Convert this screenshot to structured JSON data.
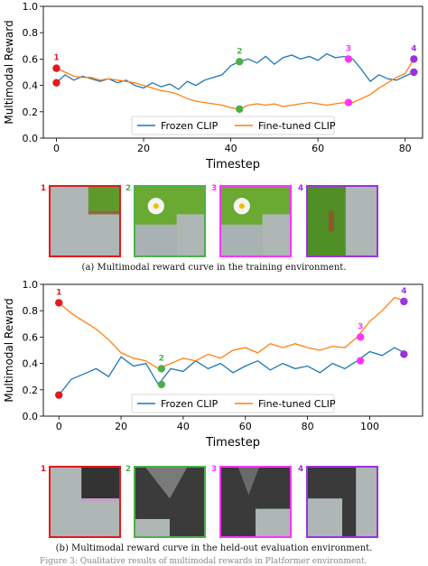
{
  "chart_data": [
    {
      "type": "line",
      "ylabel": "Multimodal Reward",
      "xlabel": "Timestep",
      "xlim": [
        -3,
        84
      ],
      "ylim": [
        0.0,
        1.0
      ],
      "xticks": [
        0,
        20,
        40,
        60,
        80
      ],
      "yticks": [
        0.0,
        0.2,
        0.4,
        0.6,
        0.8,
        1.0
      ],
      "xtick_labels": [
        "0",
        "20",
        "40",
        "60",
        "80"
      ],
      "ytick_labels": [
        "0.0",
        "0.2",
        "0.4",
        "0.6",
        "0.8",
        "1.0"
      ],
      "legend_position": "bottom-center",
      "series": [
        {
          "name": "Frozen CLIP",
          "color": "#1f77b4",
          "x": [
            0,
            2,
            4,
            6,
            8,
            10,
            12,
            14,
            16,
            18,
            20,
            22,
            24,
            26,
            28,
            30,
            32,
            34,
            36,
            38,
            40,
            42,
            44,
            46,
            48,
            50,
            52,
            54,
            56,
            58,
            60,
            62,
            64,
            66,
            68,
            70,
            72,
            74,
            76,
            78,
            80,
            82
          ],
          "y": [
            0.42,
            0.48,
            0.44,
            0.47,
            0.45,
            0.43,
            0.45,
            0.42,
            0.44,
            0.4,
            0.38,
            0.42,
            0.39,
            0.41,
            0.37,
            0.43,
            0.4,
            0.44,
            0.46,
            0.48,
            0.55,
            0.58,
            0.6,
            0.57,
            0.62,
            0.56,
            0.61,
            0.63,
            0.6,
            0.62,
            0.59,
            0.64,
            0.61,
            0.62,
            0.6,
            0.52,
            0.43,
            0.48,
            0.45,
            0.44,
            0.47,
            0.5
          ]
        },
        {
          "name": "Fine-tuned CLIP",
          "color": "#ff7f0e",
          "x": [
            0,
            2,
            4,
            6,
            8,
            10,
            12,
            14,
            16,
            18,
            20,
            22,
            24,
            26,
            28,
            30,
            32,
            34,
            36,
            38,
            40,
            42,
            44,
            46,
            48,
            50,
            52,
            54,
            56,
            58,
            60,
            62,
            64,
            66,
            68,
            70,
            72,
            74,
            76,
            78,
            80,
            82
          ],
          "y": [
            0.53,
            0.5,
            0.47,
            0.46,
            0.46,
            0.44,
            0.45,
            0.44,
            0.43,
            0.42,
            0.4,
            0.38,
            0.36,
            0.35,
            0.33,
            0.3,
            0.28,
            0.27,
            0.26,
            0.25,
            0.23,
            0.22,
            0.25,
            0.26,
            0.25,
            0.26,
            0.24,
            0.25,
            0.26,
            0.27,
            0.26,
            0.25,
            0.26,
            0.27,
            0.27,
            0.3,
            0.33,
            0.38,
            0.42,
            0.46,
            0.49,
            0.6
          ]
        }
      ],
      "markers": [
        {
          "label": "1",
          "color": "#e41a1c",
          "x": 0,
          "y_upper": 0.53,
          "y_lower": 0.42
        },
        {
          "label": "2",
          "color": "#4daf4a",
          "x": 42,
          "y_upper": 0.58,
          "y_lower": 0.22
        },
        {
          "label": "3",
          "color": "#ff33ff",
          "x": 67,
          "y_upper": 0.6,
          "y_lower": 0.27
        },
        {
          "label": "4",
          "color": "#9933dd",
          "x": 82,
          "y_upper": 0.6,
          "y_lower": 0.5
        }
      ]
    },
    {
      "type": "line",
      "ylabel": "Multimodal Reward",
      "xlabel": "Timestep",
      "xlim": [
        -5,
        117
      ],
      "ylim": [
        0.0,
        1.0
      ],
      "xticks": [
        0,
        20,
        40,
        60,
        80,
        100
      ],
      "yticks": [
        0.0,
        0.2,
        0.4,
        0.6,
        0.8,
        1.0
      ],
      "xtick_labels": [
        "0",
        "20",
        "40",
        "60",
        "80",
        "100"
      ],
      "ytick_labels": [
        "0.0",
        "0.2",
        "0.4",
        "0.6",
        "0.8",
        "1.0"
      ],
      "legend_position": "bottom-center",
      "series": [
        {
          "name": "Frozen CLIP",
          "color": "#1f77b4",
          "x": [
            0,
            4,
            8,
            12,
            16,
            20,
            24,
            28,
            32,
            36,
            40,
            44,
            48,
            52,
            56,
            60,
            64,
            68,
            72,
            76,
            80,
            84,
            88,
            92,
            96,
            100,
            104,
            108,
            112
          ],
          "y": [
            0.16,
            0.28,
            0.32,
            0.36,
            0.3,
            0.45,
            0.38,
            0.4,
            0.24,
            0.36,
            0.34,
            0.42,
            0.36,
            0.4,
            0.33,
            0.38,
            0.42,
            0.35,
            0.4,
            0.36,
            0.38,
            0.33,
            0.4,
            0.36,
            0.42,
            0.49,
            0.46,
            0.52,
            0.47
          ]
        },
        {
          "name": "Fine-tuned CLIP",
          "color": "#ff7f0e",
          "x": [
            0,
            4,
            8,
            12,
            16,
            20,
            24,
            28,
            32,
            36,
            40,
            44,
            48,
            52,
            56,
            60,
            64,
            68,
            72,
            76,
            80,
            84,
            88,
            92,
            96,
            100,
            104,
            108,
            112
          ],
          "y": [
            0.86,
            0.78,
            0.72,
            0.66,
            0.58,
            0.48,
            0.44,
            0.42,
            0.36,
            0.4,
            0.44,
            0.42,
            0.47,
            0.44,
            0.5,
            0.52,
            0.48,
            0.55,
            0.52,
            0.55,
            0.52,
            0.5,
            0.53,
            0.52,
            0.6,
            0.72,
            0.8,
            0.9,
            0.87
          ]
        }
      ],
      "markers": [
        {
          "label": "1",
          "color": "#e41a1c",
          "x": 0,
          "y_upper": 0.86,
          "y_lower": 0.16
        },
        {
          "label": "2",
          "color": "#4daf4a",
          "x": 33,
          "y_upper": 0.36,
          "y_lower": 0.24
        },
        {
          "label": "3",
          "color": "#ff33ff",
          "x": 97,
          "y_upper": 0.6,
          "y_lower": 0.42
        },
        {
          "label": "4",
          "color": "#9933dd",
          "x": 111,
          "y_upper": 0.87,
          "y_lower": 0.47
        }
      ]
    }
  ],
  "thumbnails_train": [
    {
      "label": "1",
      "color": "#e41a1c",
      "scene": "gray-wall"
    },
    {
      "label": "2",
      "color": "#4daf4a",
      "scene": "green-flower"
    },
    {
      "label": "3",
      "color": "#ff33ff",
      "scene": "green-flower"
    },
    {
      "label": "4",
      "color": "#9933dd",
      "scene": "green-wall"
    }
  ],
  "thumbnails_eval": [
    {
      "label": "1",
      "color": "#e41a1c",
      "scene": "dark-wall"
    },
    {
      "label": "2",
      "color": "#4daf4a",
      "scene": "dark-cave"
    },
    {
      "label": "3",
      "color": "#ff33ff",
      "scene": "dark-floor"
    },
    {
      "label": "4",
      "color": "#9933dd",
      "scene": "dark-floor2"
    }
  ],
  "captions": {
    "top": "(a) Multimodal reward curve in the training environment.",
    "bottom": "(b) Multimodal reward curve in the held-out evaluation environment.",
    "footer": "Figure 3: Qualitative results of multimodal rewards in Platformer environment."
  }
}
